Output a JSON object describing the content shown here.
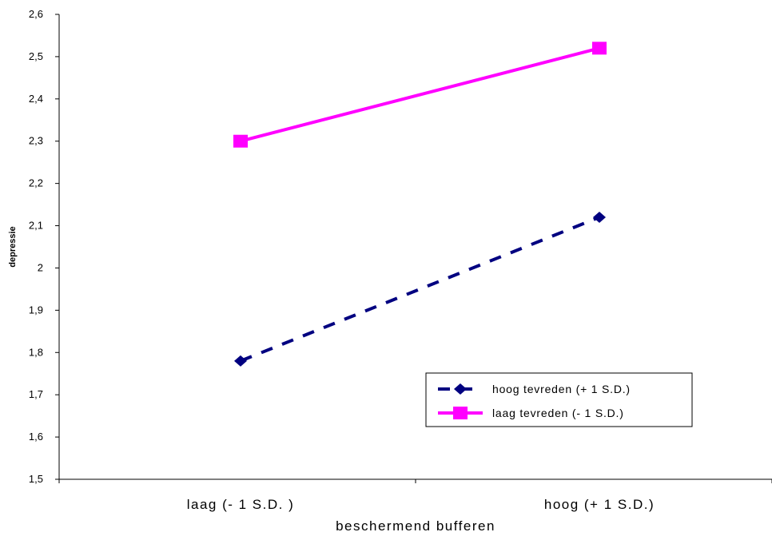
{
  "chart_data": {
    "type": "line",
    "title": "",
    "xlabel": "beschermend bufferen",
    "ylabel": "depressie",
    "categories": [
      "laag (- 1 S.D. )",
      "hoog (+ 1 S.D.)"
    ],
    "yticks": [
      "1,5",
      "1,6",
      "1,7",
      "1,8",
      "1,9",
      "2",
      "2,1",
      "2,2",
      "2,3",
      "2,4",
      "2,5",
      "2,6"
    ],
    "ylim": [
      1.5,
      2.6
    ],
    "grid": false,
    "legend_position": "bottom-right",
    "series": [
      {
        "name": "hoog tevreden (+ 1 S.D.)",
        "values": [
          1.78,
          2.12
        ],
        "color": "#000080",
        "line_style": "dashed",
        "marker": "diamond"
      },
      {
        "name": "laag tevreden (- 1 S.D.)",
        "values": [
          2.3,
          2.52
        ],
        "color": "#FF00FF",
        "line_style": "solid",
        "marker": "square"
      }
    ]
  }
}
